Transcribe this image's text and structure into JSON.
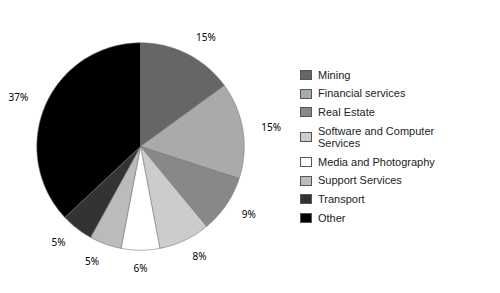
{
  "chart_data": {
    "type": "pie",
    "categories": [
      "Mining",
      "Financial services",
      "Real Estate",
      "Software and Computer\nServices",
      "Media and Photography",
      "Support Services",
      "Transport",
      "Other"
    ],
    "values": [
      15,
      15,
      9,
      8,
      6,
      5,
      5,
      37
    ],
    "value_labels": [
      "15%",
      "15%",
      "9%",
      "8%",
      "6%",
      "5%",
      "5%",
      "37%"
    ],
    "colors": [
      "#666666",
      "#aaaaaa",
      "#888888",
      "#cccccc",
      "#ffffff",
      "#bbbbbb",
      "#333333",
      "#000000"
    ],
    "data_labels": true,
    "legend": "right"
  }
}
